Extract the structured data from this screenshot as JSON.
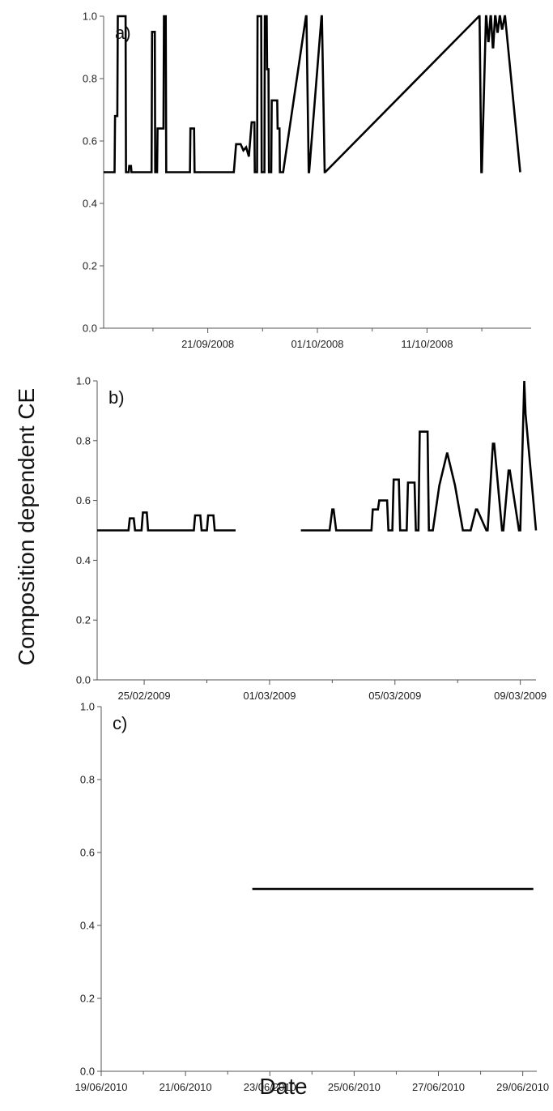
{
  "figure": {
    "ylabel": "Composition dependent CE",
    "xlabel": "Date"
  },
  "chart_data": [
    {
      "type": "line",
      "panel_label": "a)",
      "ylim": [
        0,
        1.0
      ],
      "yticks": [
        0.0,
        0.2,
        0.4,
        0.6,
        0.8,
        1.0
      ],
      "ytick_labels": [
        "0.0",
        "0.2",
        "0.4",
        "0.6",
        "0.8",
        "1.0"
      ],
      "xlim": [
        "2008-09-11T12:00",
        "2008-10-20T12:00"
      ],
      "xticks": [
        "2008-09-21",
        "2008-10-01",
        "2008-10-11"
      ],
      "xtick_labels": [
        "21/09/2008",
        "01/10/2008",
        "11/10/2008"
      ],
      "minor_xticks": [
        "2008-09-16",
        "2008-09-26",
        "2008-10-06",
        "2008-10-16"
      ],
      "grid": false,
      "series": [
        {
          "x": [
            "2008-09-11T12:00",
            "2008-09-12T12:00",
            "2008-09-12T13:00",
            "2008-09-12T18:00",
            "2008-09-12T19:00",
            "2008-09-13T12:00",
            "2008-09-13T13:00",
            "2008-09-13T19:00",
            "2008-09-13T20:00",
            "2008-09-14T00:00",
            "2008-09-14T01:00",
            "2008-09-15T21:00",
            "2008-09-15T22:00",
            "2008-09-16T04:00",
            "2008-09-16T05:00",
            "2008-09-16T09:00",
            "2008-09-16T10:00",
            "2008-09-16T23:00",
            "2008-09-17T00:00",
            "2008-09-17T04:00",
            "2008-09-17T05:00",
            "2008-09-17T09:00",
            "2008-09-17T10:00",
            "2008-09-19T09:00",
            "2008-09-19T10:00",
            "2008-09-19T14:00",
            "2008-09-19T15:00",
            "2008-09-19T18:00",
            "2008-09-19T19:00",
            "2008-09-23T09:00",
            "2008-09-23T14:00",
            "2008-09-24T00:00",
            "2008-09-24T06:00",
            "2008-09-24T12:00",
            "2008-09-24T18:00",
            "2008-09-25T00:00",
            "2008-09-25T06:00",
            "2008-09-25T07:00",
            "2008-09-25T12:00",
            "2008-09-25T13:00",
            "2008-09-25T21:00",
            "2008-09-25T22:00",
            "2008-09-26T04:00",
            "2008-09-26T05:00",
            "2008-09-26T09:00",
            "2008-09-26T10:00",
            "2008-09-26T13:00",
            "2008-09-26T14:00",
            "2008-09-26T19:00",
            "2008-09-26T20:00",
            "2008-09-27T08:00",
            "2008-09-27T09:00",
            "2008-09-27T13:00",
            "2008-09-27T14:00",
            "2008-09-27T20:00",
            "2008-09-27T21:00",
            "2008-09-29T23:00",
            "2008-09-30T00:00",
            "2008-09-30T05:00",
            "2008-09-30T06:00",
            "2008-10-01T09:00",
            "2008-10-01T10:00",
            "2008-10-01T16:00",
            "2008-10-01T17:00",
            "2008-10-15T18:00",
            "2008-10-15T19:00",
            "2008-10-15T23:00",
            "2008-10-16T00:00",
            "2008-10-16T09:00",
            "2008-10-16T10:00",
            "2008-10-16T14:00",
            "2008-10-16T15:00",
            "2008-10-16T19:00",
            "2008-10-16T20:00",
            "2008-10-17T00:00",
            "2008-10-17T01:00",
            "2008-10-17T05:00",
            "2008-10-17T06:00",
            "2008-10-17T10:00",
            "2008-10-17T11:00",
            "2008-10-17T15:00",
            "2008-10-17T16:00",
            "2008-10-17T20:00",
            "2008-10-17T21:00",
            "2008-10-18T02:00",
            "2008-10-18T03:00",
            "2008-10-19T12:00"
          ],
          "y": [
            0.5,
            0.5,
            0.68,
            0.68,
            1.0,
            1.0,
            0.5,
            0.5,
            0.52,
            0.52,
            0.5,
            0.5,
            0.95,
            0.95,
            0.5,
            0.5,
            0.64,
            0.64,
            1.0,
            1.0,
            0.5,
            0.5,
            0.5,
            0.5,
            0.64,
            0.64,
            0.64,
            0.64,
            0.5,
            0.5,
            0.59,
            0.59,
            0.57,
            0.58,
            0.55,
            0.66,
            0.66,
            0.5,
            0.5,
            1.0,
            1.0,
            0.5,
            0.5,
            1.0,
            1.0,
            0.83,
            0.83,
            0.5,
            0.5,
            0.73,
            0.73,
            0.64,
            0.64,
            0.5,
            0.5,
            0.5,
            1.0,
            1.0,
            0.5,
            0.5,
            1.0,
            1.0,
            0.5,
            0.5,
            1.0,
            1.0,
            0.5,
            0.5,
            1.0,
            1.0,
            0.92,
            0.92,
            1.0,
            1.0,
            0.9,
            0.9,
            1.0,
            1.0,
            0.95,
            0.95,
            1.0,
            1.0,
            0.96,
            0.96,
            1.0,
            1.0,
            0.5
          ]
        }
      ]
    },
    {
      "type": "line",
      "panel_label": "b)",
      "ylim": [
        0,
        1.0
      ],
      "yticks": [
        0.0,
        0.2,
        0.4,
        0.6,
        0.8,
        1.0
      ],
      "ytick_labels": [
        "0.0",
        "0.2",
        "0.4",
        "0.6",
        "0.8",
        "1.0"
      ],
      "xlim": [
        "2009-02-23T12:00",
        "2009-03-09T12:00"
      ],
      "xticks": [
        "2009-02-25",
        "2009-03-01",
        "2009-03-05",
        "2009-03-09"
      ],
      "xtick_labels": [
        "25/02/2009",
        "01/03/2009",
        "05/03/2009",
        "09/03/2009"
      ],
      "minor_xticks": [
        "2009-02-27",
        "2009-03-03",
        "2009-03-07"
      ],
      "grid": false,
      "series": [
        {
          "x": [
            "2009-02-23T12:00",
            "2009-02-24T12:00",
            "2009-02-24T13:00",
            "2009-02-24T16:00",
            "2009-02-24T17:00",
            "2009-02-24T22:00",
            "2009-02-24T23:00",
            "2009-02-25T02:00",
            "2009-02-25T03:00",
            "2009-02-25T08:00",
            "2009-02-26T14:00",
            "2009-02-26T15:00",
            "2009-02-26T19:00",
            "2009-02-26T20:00",
            "2009-02-27T00:00",
            "2009-02-27T01:00",
            "2009-02-27T05:00",
            "2009-02-27T06:00",
            "2009-02-27T22:00"
          ],
          "y": [
            0.5,
            0.5,
            0.54,
            0.54,
            0.5,
            0.5,
            0.56,
            0.56,
            0.5,
            0.5,
            0.5,
            0.55,
            0.55,
            0.5,
            0.5,
            0.55,
            0.55,
            0.5,
            0.5
          ]
        },
        {
          "x": [
            "2009-03-02T00:00",
            "2009-03-02T22:00",
            "2009-03-03T00:00",
            "2009-03-03T01:00",
            "2009-03-03T03:00",
            "2009-03-03T04:00",
            "2009-03-04T06:00",
            "2009-03-04T07:00",
            "2009-03-04T11:00",
            "2009-03-04T12:00",
            "2009-03-04T18:00",
            "2009-03-04T19:00",
            "2009-03-04T22:00",
            "2009-03-04T23:00",
            "2009-03-05T03:00",
            "2009-03-05T04:00",
            "2009-03-05T09:00",
            "2009-03-05T10:00",
            "2009-03-05T15:00",
            "2009-03-05T16:00",
            "2009-03-05T18:00",
            "2009-03-05T19:00",
            "2009-03-06T01:00",
            "2009-03-06T02:00",
            "2009-03-06T04:00",
            "2009-03-06T05:00",
            "2009-03-06T10:00",
            "2009-03-06T16:00",
            "2009-03-06T22:00",
            "2009-03-07T04:00",
            "2009-03-07T10:00",
            "2009-03-07T14:00",
            "2009-03-07T15:00",
            "2009-03-07T22:00",
            "2009-03-07T23:00",
            "2009-03-08T03:00",
            "2009-03-08T04:00",
            "2009-03-08T10:00",
            "2009-03-08T11:00",
            "2009-03-08T15:00",
            "2009-03-08T16:00",
            "2009-03-08T23:00",
            "2009-03-09T00:00",
            "2009-03-09T03:00",
            "2009-03-09T04:00",
            "2009-03-09T12:00"
          ],
          "y": [
            0.5,
            0.5,
            0.57,
            0.57,
            0.5,
            0.5,
            0.5,
            0.57,
            0.57,
            0.6,
            0.6,
            0.5,
            0.5,
            0.67,
            0.67,
            0.5,
            0.5,
            0.66,
            0.66,
            0.5,
            0.5,
            0.83,
            0.83,
            0.5,
            0.5,
            0.5,
            0.65,
            0.76,
            0.65,
            0.5,
            0.5,
            0.57,
            0.57,
            0.5,
            0.5,
            0.79,
            0.79,
            0.5,
            0.5,
            0.7,
            0.7,
            0.5,
            0.5,
            1.0,
            0.89,
            0.5
          ]
        }
      ]
    },
    {
      "type": "line",
      "panel_label": "c)",
      "ylim": [
        0,
        1.0
      ],
      "yticks": [
        0.0,
        0.2,
        0.4,
        0.6,
        0.8,
        1.0
      ],
      "ytick_labels": [
        "0.0",
        "0.2",
        "0.4",
        "0.6",
        "0.8",
        "1.0"
      ],
      "xlim": [
        "2010-06-19T00:00",
        "2010-06-29T08:00"
      ],
      "xticks": [
        "2010-06-19",
        "2010-06-21",
        "2010-06-23",
        "2010-06-25",
        "2010-06-27",
        "2010-06-29"
      ],
      "xtick_labels": [
        "19/06/2010",
        "21/06/2010",
        "23/06/2010",
        "25/06/2010",
        "27/06/2010",
        "29/06/2010"
      ],
      "minor_xticks": [
        "2010-06-20",
        "2010-06-22",
        "2010-06-24",
        "2010-06-26",
        "2010-06-28"
      ],
      "grid": false,
      "series": [
        {
          "x": [
            "2010-06-22T14:00",
            "2010-06-29T06:00"
          ],
          "y": [
            0.5,
            0.5
          ]
        }
      ]
    }
  ]
}
